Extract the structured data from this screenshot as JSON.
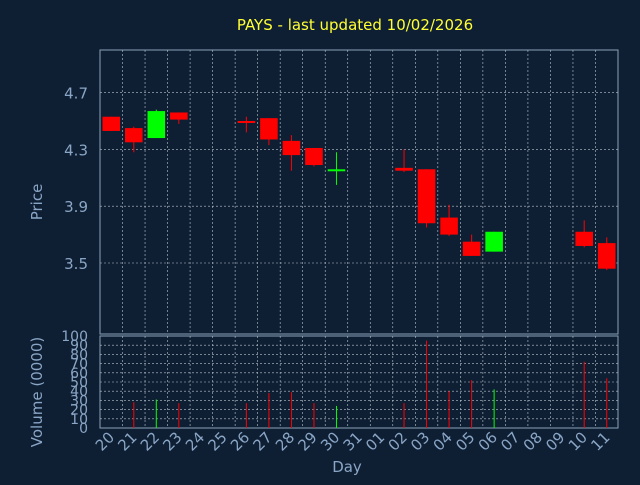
{
  "title": "PAYS - last updated 10/02/2026",
  "colors": {
    "background": "#0f1f33",
    "frame": "#8aa0b8",
    "grid": "#b8c4d0",
    "title": "#ffff33",
    "text": "#8aa6c6",
    "up": "#00ff00",
    "down": "#ff0000"
  },
  "chart_data": [
    {
      "type": "candlestick",
      "ylabel": "Price",
      "ylim": [
        3.0,
        5.0
      ],
      "yticks": [
        3.5,
        3.9,
        4.3,
        4.7
      ],
      "ytick_labels": [
        "3.5",
        "3.9",
        "4.3",
        "4.7"
      ],
      "grid": true,
      "categories": [
        "20",
        "21",
        "22",
        "23",
        "24",
        "25",
        "26",
        "27",
        "28",
        "29",
        "30",
        "31",
        "01",
        "02",
        "03",
        "04",
        "05",
        "06",
        "07",
        "08",
        "09",
        "10",
        "11"
      ],
      "candles": [
        {
          "i": 0,
          "open": 4.53,
          "high": 4.53,
          "low": 4.43,
          "close": 4.43
        },
        {
          "i": 1,
          "open": 4.45,
          "high": 4.46,
          "low": 4.28,
          "close": 4.35
        },
        {
          "i": 2,
          "open": 4.38,
          "high": 4.58,
          "low": 4.38,
          "close": 4.57
        },
        {
          "i": 3,
          "open": 4.56,
          "high": 4.56,
          "low": 4.48,
          "close": 4.51
        },
        {
          "i": 6,
          "open": 4.5,
          "high": 4.53,
          "low": 4.42,
          "close": 4.49
        },
        {
          "i": 7,
          "open": 4.52,
          "high": 4.52,
          "low": 4.33,
          "close": 4.37
        },
        {
          "i": 8,
          "open": 4.36,
          "high": 4.4,
          "low": 4.15,
          "close": 4.26
        },
        {
          "i": 9,
          "open": 4.31,
          "high": 4.31,
          "low": 4.18,
          "close": 4.19
        },
        {
          "i": 10,
          "open": 4.15,
          "high": 4.28,
          "low": 4.05,
          "close": 4.16
        },
        {
          "i": 13,
          "open": 4.17,
          "high": 4.3,
          "low": 4.14,
          "close": 4.15
        },
        {
          "i": 14,
          "open": 4.16,
          "high": 4.16,
          "low": 3.75,
          "close": 3.78
        },
        {
          "i": 15,
          "open": 3.82,
          "high": 3.91,
          "low": 3.69,
          "close": 3.7
        },
        {
          "i": 16,
          "open": 3.65,
          "high": 3.7,
          "low": 3.55,
          "close": 3.55
        },
        {
          "i": 17,
          "open": 3.58,
          "high": 3.72,
          "low": 3.58,
          "close": 3.72
        },
        {
          "i": 21,
          "open": 3.72,
          "high": 3.8,
          "low": 3.61,
          "close": 3.62
        },
        {
          "i": 22,
          "open": 3.64,
          "high": 3.68,
          "low": 3.45,
          "close": 3.46
        }
      ]
    },
    {
      "type": "bar",
      "ylabel": "Volume (0000)",
      "xlabel": "Day",
      "ylim": [
        0,
        100
      ],
      "yticks": [
        0,
        10,
        20,
        30,
        40,
        50,
        60,
        70,
        80,
        90,
        100
      ],
      "ytick_labels": [
        "0",
        "10",
        "20",
        "30",
        "40",
        "50",
        "60",
        "70",
        "80",
        "90",
        "100"
      ],
      "grid": true,
      "categories": [
        "20",
        "21",
        "22",
        "23",
        "24",
        "25",
        "26",
        "27",
        "28",
        "29",
        "30",
        "31",
        "01",
        "02",
        "03",
        "04",
        "05",
        "06",
        "07",
        "08",
        "09",
        "10",
        "11"
      ],
      "bars": [
        {
          "i": 1,
          "value": 28
        },
        {
          "i": 2,
          "value": 31
        },
        {
          "i": 3,
          "value": 27
        },
        {
          "i": 6,
          "value": 27
        },
        {
          "i": 7,
          "value": 38
        },
        {
          "i": 8,
          "value": 39
        },
        {
          "i": 9,
          "value": 27
        },
        {
          "i": 10,
          "value": 24
        },
        {
          "i": 13,
          "value": 27
        },
        {
          "i": 14,
          "value": 95
        },
        {
          "i": 15,
          "value": 40
        },
        {
          "i": 16,
          "value": 52
        },
        {
          "i": 17,
          "value": 42
        },
        {
          "i": 21,
          "value": 72
        },
        {
          "i": 22,
          "value": 54
        }
      ]
    }
  ]
}
